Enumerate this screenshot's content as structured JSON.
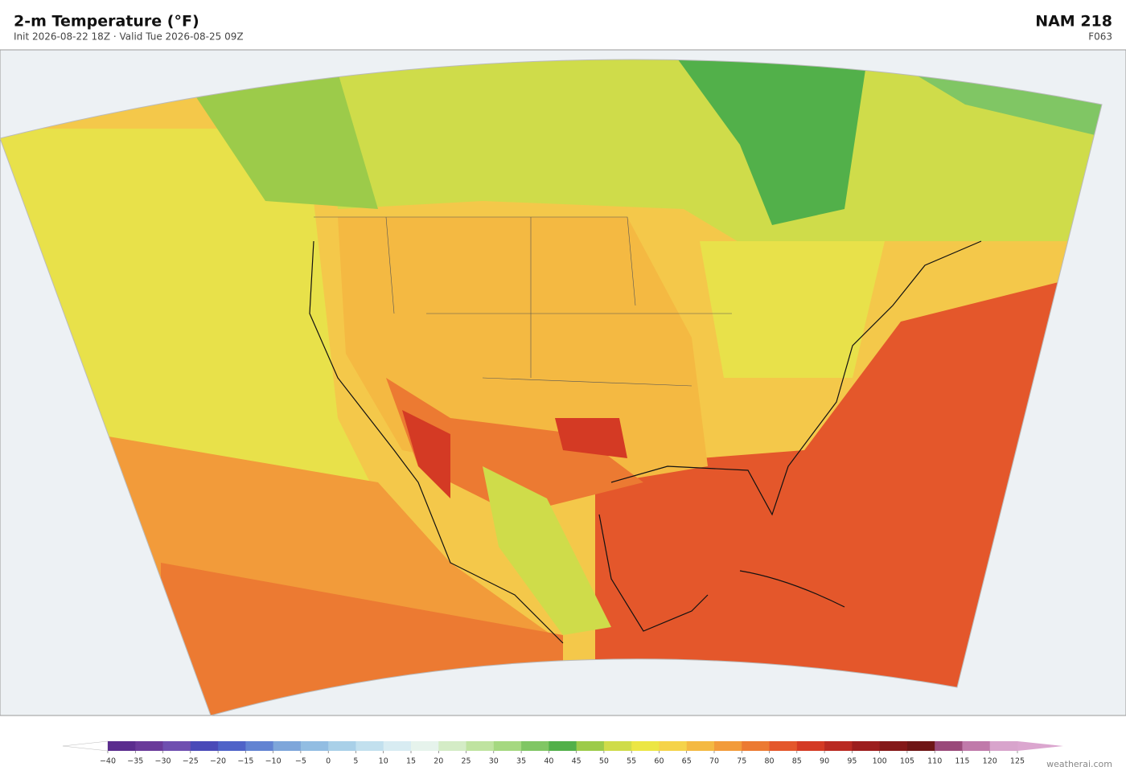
{
  "header": {
    "title": "2-m Temperature  (°F)",
    "subtitle": "Init 2026-08-22 18Z  ·  Valid Tue 2026-08-25 09Z",
    "model": "NAM  218",
    "forecast_hour": "F063"
  },
  "colorbar": {
    "ticks": [
      {
        "value": -40,
        "label": "−40"
      },
      {
        "value": -35,
        "label": "−35"
      },
      {
        "value": -30,
        "label": "−30"
      },
      {
        "value": -25,
        "label": "−25"
      },
      {
        "value": -20,
        "label": "−20"
      },
      {
        "value": -15,
        "label": "−15"
      },
      {
        "value": -10,
        "label": "−10"
      },
      {
        "value": -5,
        "label": "−5"
      },
      0,
      5,
      10,
      15,
      20,
      25,
      30,
      35,
      40,
      45,
      50,
      55,
      60,
      65,
      70,
      75,
      80,
      85,
      90,
      95,
      100,
      105,
      110,
      115,
      120,
      125
    ],
    "colors": [
      "#5b2d8e",
      "#6a3a9a",
      "#6f4fb0",
      "#4a4ab8",
      "#4f63c8",
      "#6283d2",
      "#7ea6da",
      "#92bde2",
      "#a9d0e8",
      "#c2e0ee",
      "#d8ecf2",
      "#e6f3ec",
      "#d4ecc6",
      "#bfe3a0",
      "#a5d880",
      "#80c664",
      "#52b04a",
      "#9ccb4a",
      "#cfdc4a",
      "#ece644",
      "#f5d34a",
      "#f4b942",
      "#f29b3a",
      "#ec7a32",
      "#e4572b",
      "#d43a24",
      "#b92a22",
      "#9c1e1e",
      "#841818",
      "#6e1616",
      "#9a4a7a",
      "#c07aaa",
      "#d8a4cc"
    ],
    "under_color": "#ffffff",
    "over_color": "#dba6cf"
  },
  "watermark": "weatherai.com"
}
